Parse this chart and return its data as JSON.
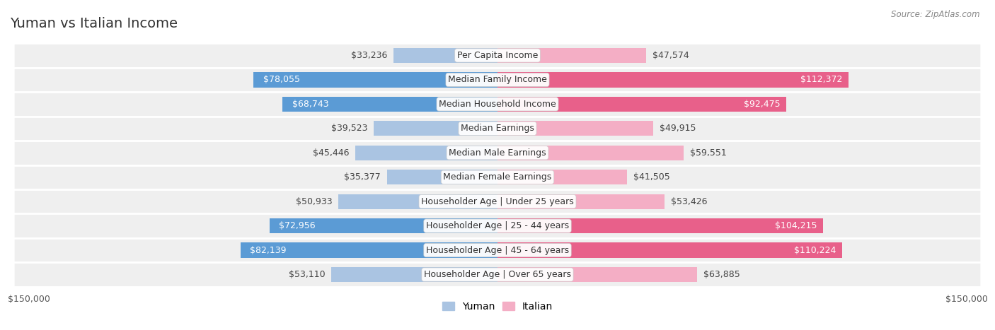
{
  "title": "Yuman vs Italian Income",
  "source": "Source: ZipAtlas.com",
  "categories": [
    "Per Capita Income",
    "Median Family Income",
    "Median Household Income",
    "Median Earnings",
    "Median Male Earnings",
    "Median Female Earnings",
    "Householder Age | Under 25 years",
    "Householder Age | 25 - 44 years",
    "Householder Age | 45 - 64 years",
    "Householder Age | Over 65 years"
  ],
  "yuman_values": [
    33236,
    78055,
    68743,
    39523,
    45446,
    35377,
    50933,
    72956,
    82139,
    53110
  ],
  "italian_values": [
    47574,
    112372,
    92475,
    49915,
    59551,
    41505,
    53426,
    104215,
    110224,
    63885
  ],
  "yuman_labels": [
    "$33,236",
    "$78,055",
    "$68,743",
    "$39,523",
    "$45,446",
    "$35,377",
    "$50,933",
    "$72,956",
    "$82,139",
    "$53,110"
  ],
  "italian_labels": [
    "$47,574",
    "$112,372",
    "$92,475",
    "$49,915",
    "$59,551",
    "$41,505",
    "$53,426",
    "$104,215",
    "$110,224",
    "$63,885"
  ],
  "yuman_color_light": "#aac4e2",
  "yuman_color_dark": "#5b9bd5",
  "italian_color_light": "#f4aec5",
  "italian_color_dark": "#e8608a",
  "max_value": 150000,
  "bar_height": 0.62,
  "row_bg_light": "#efefef",
  "row_bg_alt": "#e8e8e8",
  "title_fontsize": 14,
  "label_fontsize": 9,
  "category_fontsize": 9,
  "legend_fontsize": 10,
  "axis_label_fontsize": 9,
  "yuman_white_threshold": 60000,
  "italian_white_threshold": 75000
}
